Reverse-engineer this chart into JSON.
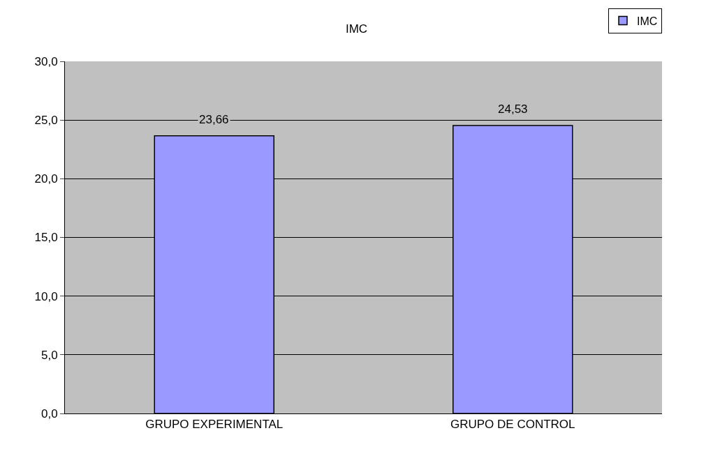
{
  "chart_data": {
    "type": "bar",
    "title": "IMC",
    "categories": [
      "GRUPO EXPERIMENTAL",
      "GRUPO DE CONTROL"
    ],
    "series": [
      {
        "name": "IMC",
        "color": "#9999ff",
        "values": [
          23.66,
          24.53
        ],
        "value_labels": [
          "23,66",
          "24,53"
        ]
      }
    ],
    "ylim": [
      0,
      30
    ],
    "yticks": [
      {
        "value": 0,
        "label": "0,0"
      },
      {
        "value": 5,
        "label": "5,0"
      },
      {
        "value": 10,
        "label": "10,0"
      },
      {
        "value": 15,
        "label": "15,0"
      },
      {
        "value": 20,
        "label": "20,0"
      },
      {
        "value": 25,
        "label": "25,0"
      },
      {
        "value": 30,
        "label": "30,0"
      }
    ],
    "grid": "y",
    "legend": "top right"
  }
}
